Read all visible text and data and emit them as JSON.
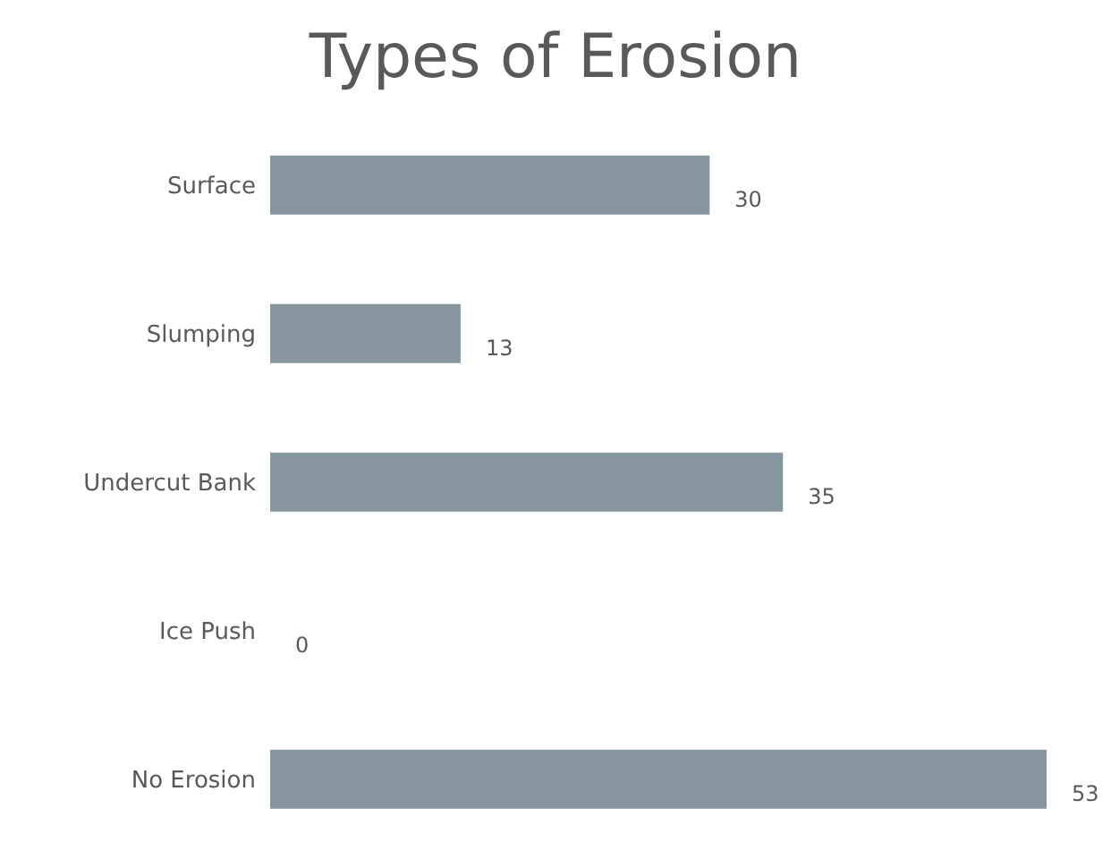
{
  "chart_data": {
    "type": "bar",
    "orientation": "horizontal",
    "title": "Types of Erosion",
    "categories": [
      "Surface",
      "Slumping",
      "Undercut Bank",
      "Ice Push",
      "No Erosion"
    ],
    "values": [
      30,
      13,
      35,
      0,
      53
    ],
    "color": "#85969e",
    "data_labels": true
  }
}
